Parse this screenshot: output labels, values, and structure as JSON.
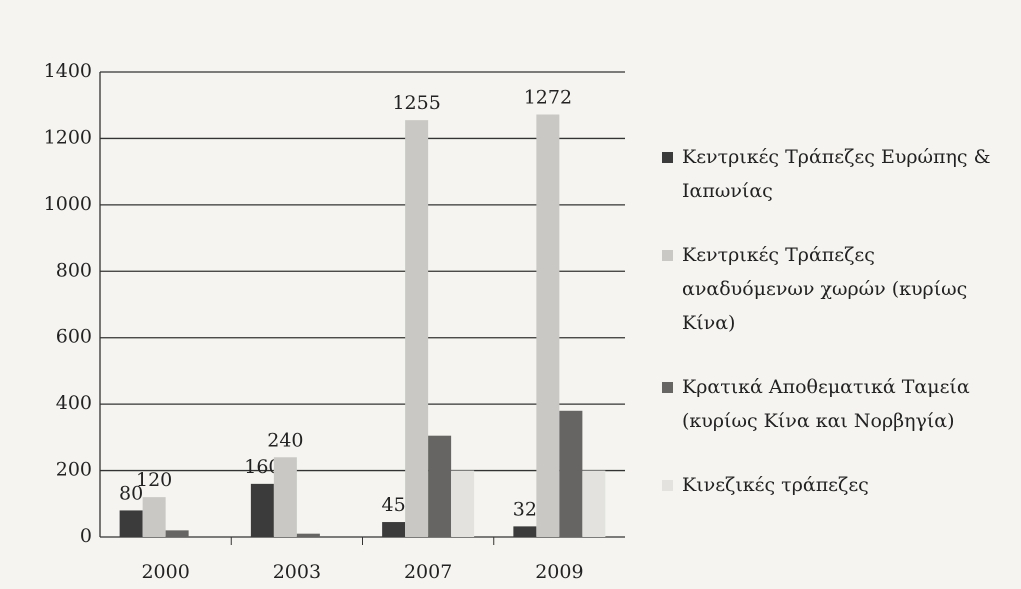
{
  "chart_data": {
    "type": "bar",
    "categories": [
      "2000",
      "2003",
      "2007",
      "2009"
    ],
    "series": [
      {
        "name": "Κεντρικές Τράπεζες Ευρώπης & Ιαπωνίας",
        "color": "#3b3b3b",
        "values": [
          80,
          160,
          45,
          32
        ],
        "data_labels": true
      },
      {
        "name": "Κεντρικές Τράπεζες αναδυόμενων χωρών (κυρίως Κίνα)",
        "color": "#c9c8c4",
        "values": [
          120,
          240,
          1255,
          1272
        ],
        "data_labels": true
      },
      {
        "name": "Κρατικά Αποθεματικά Ταμεία (κυρίως Κίνα και Νορβηγία)",
        "color": "#666563",
        "values": [
          20,
          10,
          305,
          380
        ],
        "data_labels": false
      },
      {
        "name": "Κινεζικές τράπεζες",
        "color": "#e3e2de",
        "values": [
          0,
          0,
          200,
          200
        ],
        "data_labels": false
      }
    ],
    "ylim": [
      0,
      1400
    ],
    "yticks": [
      0,
      200,
      400,
      600,
      800,
      1000,
      1200,
      1400
    ],
    "grid": true,
    "legend": "right"
  }
}
